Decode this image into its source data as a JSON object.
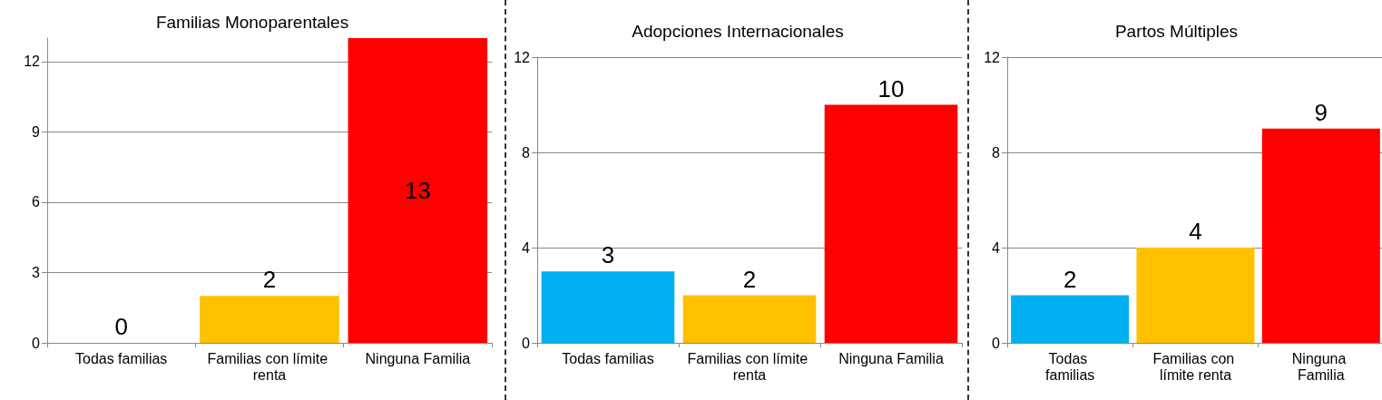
{
  "chart_data": [
    {
      "type": "bar",
      "title": "Familias Monoparentales",
      "categories": [
        "Todas familias",
        "Familias con límite renta",
        "Ninguna Familia"
      ],
      "values": [
        0,
        2,
        13
      ],
      "colors": [
        "#00b0f0",
        "#ffc000",
        "#ff0000"
      ],
      "ylim": [
        0,
        13
      ],
      "yticks": [
        0,
        3,
        6,
        9,
        12
      ],
      "grid": "y",
      "data_labels": true
    },
    {
      "type": "bar",
      "title": "Adopciones Internacionales",
      "categories": [
        "Todas familias",
        "Familias con límite renta",
        "Ninguna Familia"
      ],
      "values": [
        3,
        2,
        10
      ],
      "colors": [
        "#00b0f0",
        "#ffc000",
        "#ff0000"
      ],
      "ylim": [
        0,
        12
      ],
      "yticks": [
        0,
        4,
        8,
        12
      ],
      "grid": "y",
      "data_labels": true
    },
    {
      "type": "bar",
      "title": "Partos Múltiples",
      "categories": [
        "Todas familias",
        "Familias con límite renta",
        "Ninguna Familia"
      ],
      "values": [
        2,
        4,
        9
      ],
      "colors": [
        "#00b0f0",
        "#ffc000",
        "#ff0000"
      ],
      "ylim": [
        0,
        12
      ],
      "yticks": [
        0,
        4,
        8,
        12
      ],
      "grid": "y",
      "data_labels": true
    }
  ]
}
